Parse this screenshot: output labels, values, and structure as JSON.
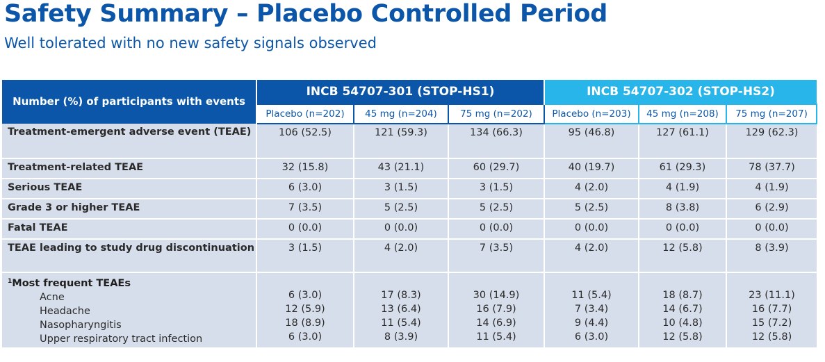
{
  "title": "Safety Summary – Placebo Controlled Period",
  "subtitle": "Well tolerated with no new safety signals observed",
  "table": {
    "label_header": "Number (%) of participants with events",
    "studies": [
      "INCB 54707-301 (STOP-HS1)",
      "INCB 54707-302 (STOP-HS2)"
    ],
    "columns": [
      "Placebo (n=202)",
      "45 mg (n=204)",
      "75 mg (n=202)",
      "Placebo (n=203)",
      "45 mg (n=208)",
      "75 mg (n=207)"
    ],
    "rows": [
      {
        "label": "Treatment-emergent adverse event (TEAE)",
        "values": [
          "106 (52.5)",
          "121 (59.3)",
          "134 (66.3)",
          "95 (46.8)",
          "127 (61.1)",
          "129 (62.3)"
        ]
      },
      {
        "label": "Treatment-related TEAE",
        "values": [
          "32 (15.8)",
          "43 (21.1)",
          "60 (29.7)",
          "40 (19.7)",
          "61 (29.3)",
          "78 (37.7)"
        ]
      },
      {
        "label": "Serious TEAE",
        "values": [
          "6 (3.0)",
          "3 (1.5)",
          "3 (1.5)",
          "4 (2.0)",
          "4 (1.9)",
          "4 (1.9)"
        ]
      },
      {
        "label": "Grade 3 or higher TEAE",
        "values": [
          "7 (3.5)",
          "5 (2.5)",
          "5 (2.5)",
          "5 (2.5)",
          "8 (3.8)",
          "6 (2.9)"
        ]
      },
      {
        "label": "Fatal TEAE",
        "values": [
          "0 (0.0)",
          "0 (0.0)",
          "0 (0.0)",
          "0 (0.0)",
          "0 (0.0)",
          "0 (0.0)"
        ]
      },
      {
        "label": "TEAE leading to study drug discontinuation",
        "values": [
          "3 (1.5)",
          "4 (2.0)",
          "7 (3.5)",
          "4 (2.0)",
          "12 (5.8)",
          "8 (3.9)"
        ]
      }
    ],
    "frequent": {
      "footnote_marker": "1",
      "heading": "Most frequent TEAEs",
      "items": [
        {
          "label": "Acne",
          "values": [
            "6 (3.0)",
            "17 (8.3)",
            "30 (14.9)",
            "11 (5.4)",
            "18 (8.7)",
            "23 (11.1)"
          ]
        },
        {
          "label": "Headache",
          "values": [
            "12 (5.9)",
            "13 (6.4)",
            "16 (7.9)",
            "7 (3.4)",
            "14 (6.7)",
            "16 (7.7)"
          ]
        },
        {
          "label": "Nasopharyngitis",
          "values": [
            "18 (8.9)",
            "11 (5.4)",
            "14 (6.9)",
            "9 (4.4)",
            "10 (4.8)",
            "15 (7.2)"
          ]
        },
        {
          "label": "Upper respiratory tract infection",
          "values": [
            "6 (3.0)",
            "8 (3.9)",
            "11 (5.4)",
            "6 (3.0)",
            "12 (5.8)",
            "12 (5.8)"
          ]
        }
      ]
    }
  },
  "colors": {
    "primary": "#0b56a8",
    "secondary": "#27b5ea",
    "row_bg": "#d7deeb"
  }
}
